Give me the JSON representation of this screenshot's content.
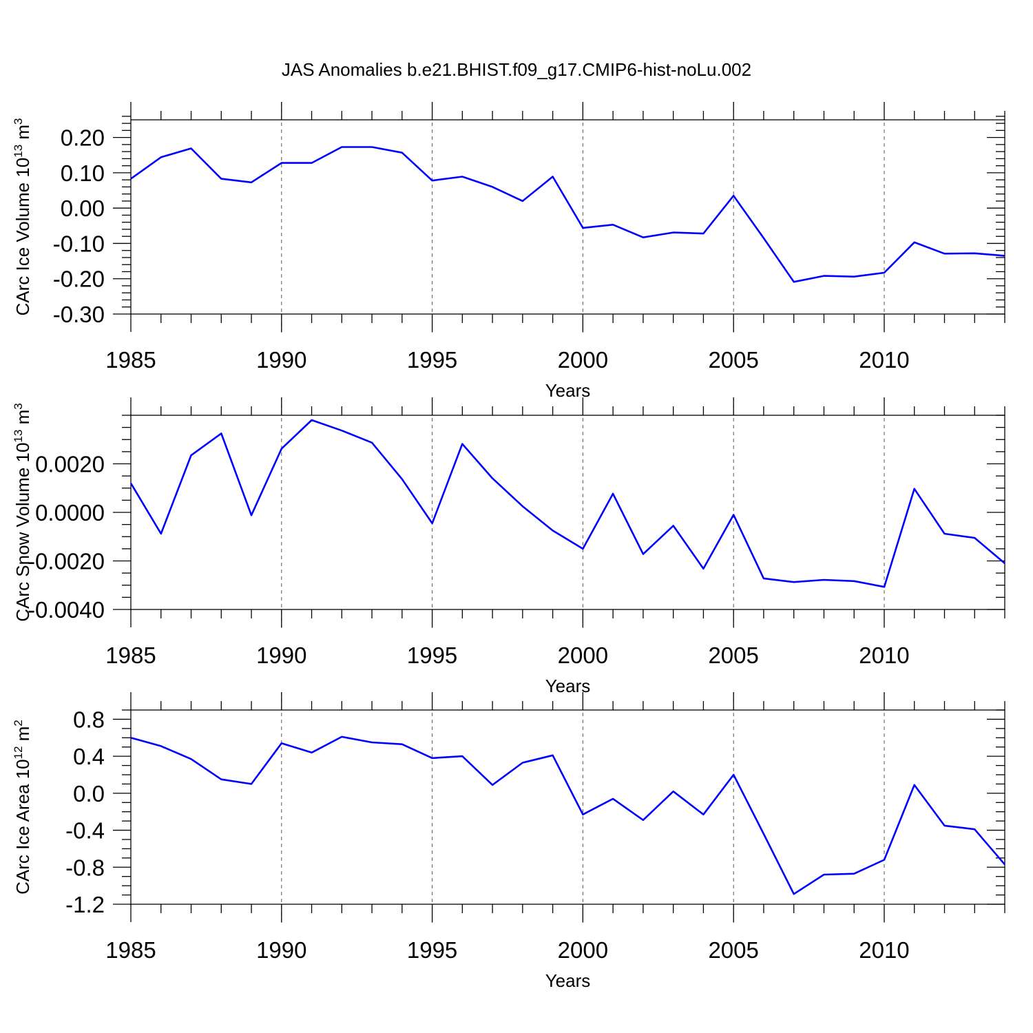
{
  "figure_title": "JAS Anomalies b.e21.BHIST.f09_g17.CMIP6-hist-noLu.002",
  "chart_data": [
    {
      "type": "line",
      "title": "JAS Anomalies b.e21.BHIST.f09_g17.CMIP6-hist-noLu.002",
      "xlabel": "Years",
      "ylabel_main": "CArc Ice Volume 10",
      "ylabel_exp": "13",
      "ylabel_unit": " m",
      "ylabel_unit_exp": "3",
      "xlim": [
        1985,
        2014
      ],
      "ylim": [
        -0.3,
        0.25
      ],
      "yticks": [
        -0.3,
        -0.2,
        -0.1,
        0.0,
        0.1,
        0.2
      ],
      "ytick_labels": [
        "-0.30",
        "-0.20",
        "-0.10",
        "0.00",
        "0.10",
        "0.20"
      ],
      "yminor_step": 0.02,
      "xticks": [
        1985,
        1990,
        1995,
        2000,
        2005,
        2010
      ],
      "xtick_labels": [
        "1985",
        "1990",
        "1995",
        "2000",
        "2005",
        "2010"
      ],
      "grid": "vertical dashed at major x ticks",
      "series": [
        {
          "name": "CArc Ice Volume",
          "color": "#0000ff",
          "x": [
            1985,
            1986,
            1987,
            1988,
            1989,
            1990,
            1991,
            1992,
            1993,
            1994,
            1995,
            1996,
            1997,
            1998,
            1999,
            2000,
            2001,
            2002,
            2003,
            2004,
            2005,
            2006,
            2007,
            2008,
            2009,
            2010,
            2011,
            2012,
            2013,
            2014
          ],
          "values": [
            0.083,
            0.144,
            0.169,
            0.083,
            0.073,
            0.128,
            0.128,
            0.173,
            0.173,
            0.157,
            0.078,
            0.089,
            0.06,
            0.02,
            0.089,
            -0.056,
            -0.047,
            -0.083,
            -0.069,
            -0.072,
            0.035,
            -0.085,
            -0.209,
            -0.192,
            -0.194,
            -0.183,
            -0.097,
            -0.129,
            -0.128,
            -0.135
          ]
        }
      ]
    },
    {
      "type": "line",
      "title": "",
      "xlabel": "Years",
      "ylabel_main": "CArc Snow Volume 10",
      "ylabel_exp": "13",
      "ylabel_unit": " m",
      "ylabel_unit_exp": "3",
      "xlim": [
        1985,
        2014
      ],
      "ylim": [
        -0.004,
        0.004
      ],
      "yticks": [
        -0.004,
        -0.002,
        0.0,
        0.002
      ],
      "ytick_labels": [
        "-0.0040",
        "-0.0020",
        "0.0000",
        "0.0020"
      ],
      "yminor_step": 0.0005,
      "xticks": [
        1985,
        1990,
        1995,
        2000,
        2005,
        2010
      ],
      "xtick_labels": [
        "1985",
        "1990",
        "1995",
        "2000",
        "2005",
        "2010"
      ],
      "grid": "vertical dashed at major x ticks",
      "series": [
        {
          "name": "CArc Snow Volume",
          "color": "#0000ff",
          "x": [
            1985,
            1986,
            1987,
            1988,
            1989,
            1990,
            1991,
            1992,
            1993,
            1994,
            1995,
            1996,
            1997,
            1998,
            1999,
            2000,
            2001,
            2002,
            2003,
            2004,
            2005,
            2006,
            2007,
            2008,
            2009,
            2010,
            2011,
            2012,
            2013,
            2014
          ],
          "values": [
            0.0012,
            -0.00088,
            0.00235,
            0.00325,
            -0.00012,
            0.00262,
            0.0038,
            0.00337,
            0.00287,
            0.00137,
            -0.00045,
            0.00282,
            0.0014,
            0.00025,
            -0.00075,
            -0.0015,
            0.00077,
            -0.00172,
            -0.00055,
            -0.00232,
            -0.0001,
            -0.00272,
            -0.00287,
            -0.00278,
            -0.00283,
            -0.00307,
            0.00097,
            -0.00088,
            -0.00105,
            -0.0021
          ]
        }
      ]
    },
    {
      "type": "line",
      "title": "",
      "xlabel": "Years",
      "ylabel_main": "CArc Ice Area 10",
      "ylabel_exp": "12",
      "ylabel_unit": " m",
      "ylabel_unit_exp": "2",
      "xlim": [
        1985,
        2014
      ],
      "ylim": [
        -1.2,
        0.9
      ],
      "yticks": [
        -1.2,
        -0.8,
        -0.4,
        0.0,
        0.4,
        0.8
      ],
      "ytick_labels": [
        "-1.2",
        "-0.8",
        "-0.4",
        "0.0",
        "0.4",
        "0.8"
      ],
      "yminor_step": 0.1,
      "xticks": [
        1985,
        1990,
        1995,
        2000,
        2005,
        2010
      ],
      "xtick_labels": [
        "1985",
        "1990",
        "1995",
        "2000",
        "2005",
        "2010"
      ],
      "grid": "vertical dashed at major x ticks",
      "series": [
        {
          "name": "CArc Ice Area",
          "color": "#0000ff",
          "x": [
            1985,
            1986,
            1987,
            1988,
            1989,
            1990,
            1991,
            1992,
            1993,
            1994,
            1995,
            1996,
            1997,
            1998,
            1999,
            2000,
            2001,
            2002,
            2003,
            2004,
            2005,
            2006,
            2007,
            2008,
            2009,
            2010,
            2011,
            2012,
            2013,
            2014
          ],
          "values": [
            0.6,
            0.51,
            0.37,
            0.15,
            0.1,
            0.54,
            0.44,
            0.61,
            0.55,
            0.53,
            0.38,
            0.4,
            0.09,
            0.33,
            0.41,
            -0.23,
            -0.06,
            -0.29,
            0.02,
            -0.23,
            0.2,
            -0.44,
            -1.09,
            -0.88,
            -0.87,
            -0.72,
            0.09,
            -0.35,
            -0.39,
            -0.77
          ]
        }
      ]
    }
  ]
}
